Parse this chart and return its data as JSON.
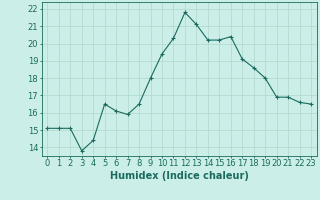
{
  "x": [
    0,
    1,
    2,
    3,
    4,
    5,
    6,
    7,
    8,
    9,
    10,
    11,
    12,
    13,
    14,
    15,
    16,
    17,
    18,
    19,
    20,
    21,
    22,
    23
  ],
  "y": [
    15.1,
    15.1,
    15.1,
    13.8,
    14.4,
    16.5,
    16.1,
    15.9,
    16.5,
    18.0,
    19.4,
    20.3,
    21.8,
    21.1,
    20.2,
    20.2,
    20.4,
    19.1,
    18.6,
    18.0,
    16.9,
    16.9,
    16.6,
    16.5
  ],
  "line_color": "#1a6b5e",
  "marker": "+",
  "marker_size": 3,
  "bg_color": "#cceee8",
  "grid_color": "#b0d8cc",
  "xlabel": "Humidex (Indice chaleur)",
  "ylabel_ticks": [
    14,
    15,
    16,
    17,
    18,
    19,
    20,
    21,
    22
  ],
  "ylim": [
    13.5,
    22.4
  ],
  "xlim": [
    -0.5,
    23.5
  ],
  "tick_fontsize": 6,
  "xlabel_fontsize": 7
}
